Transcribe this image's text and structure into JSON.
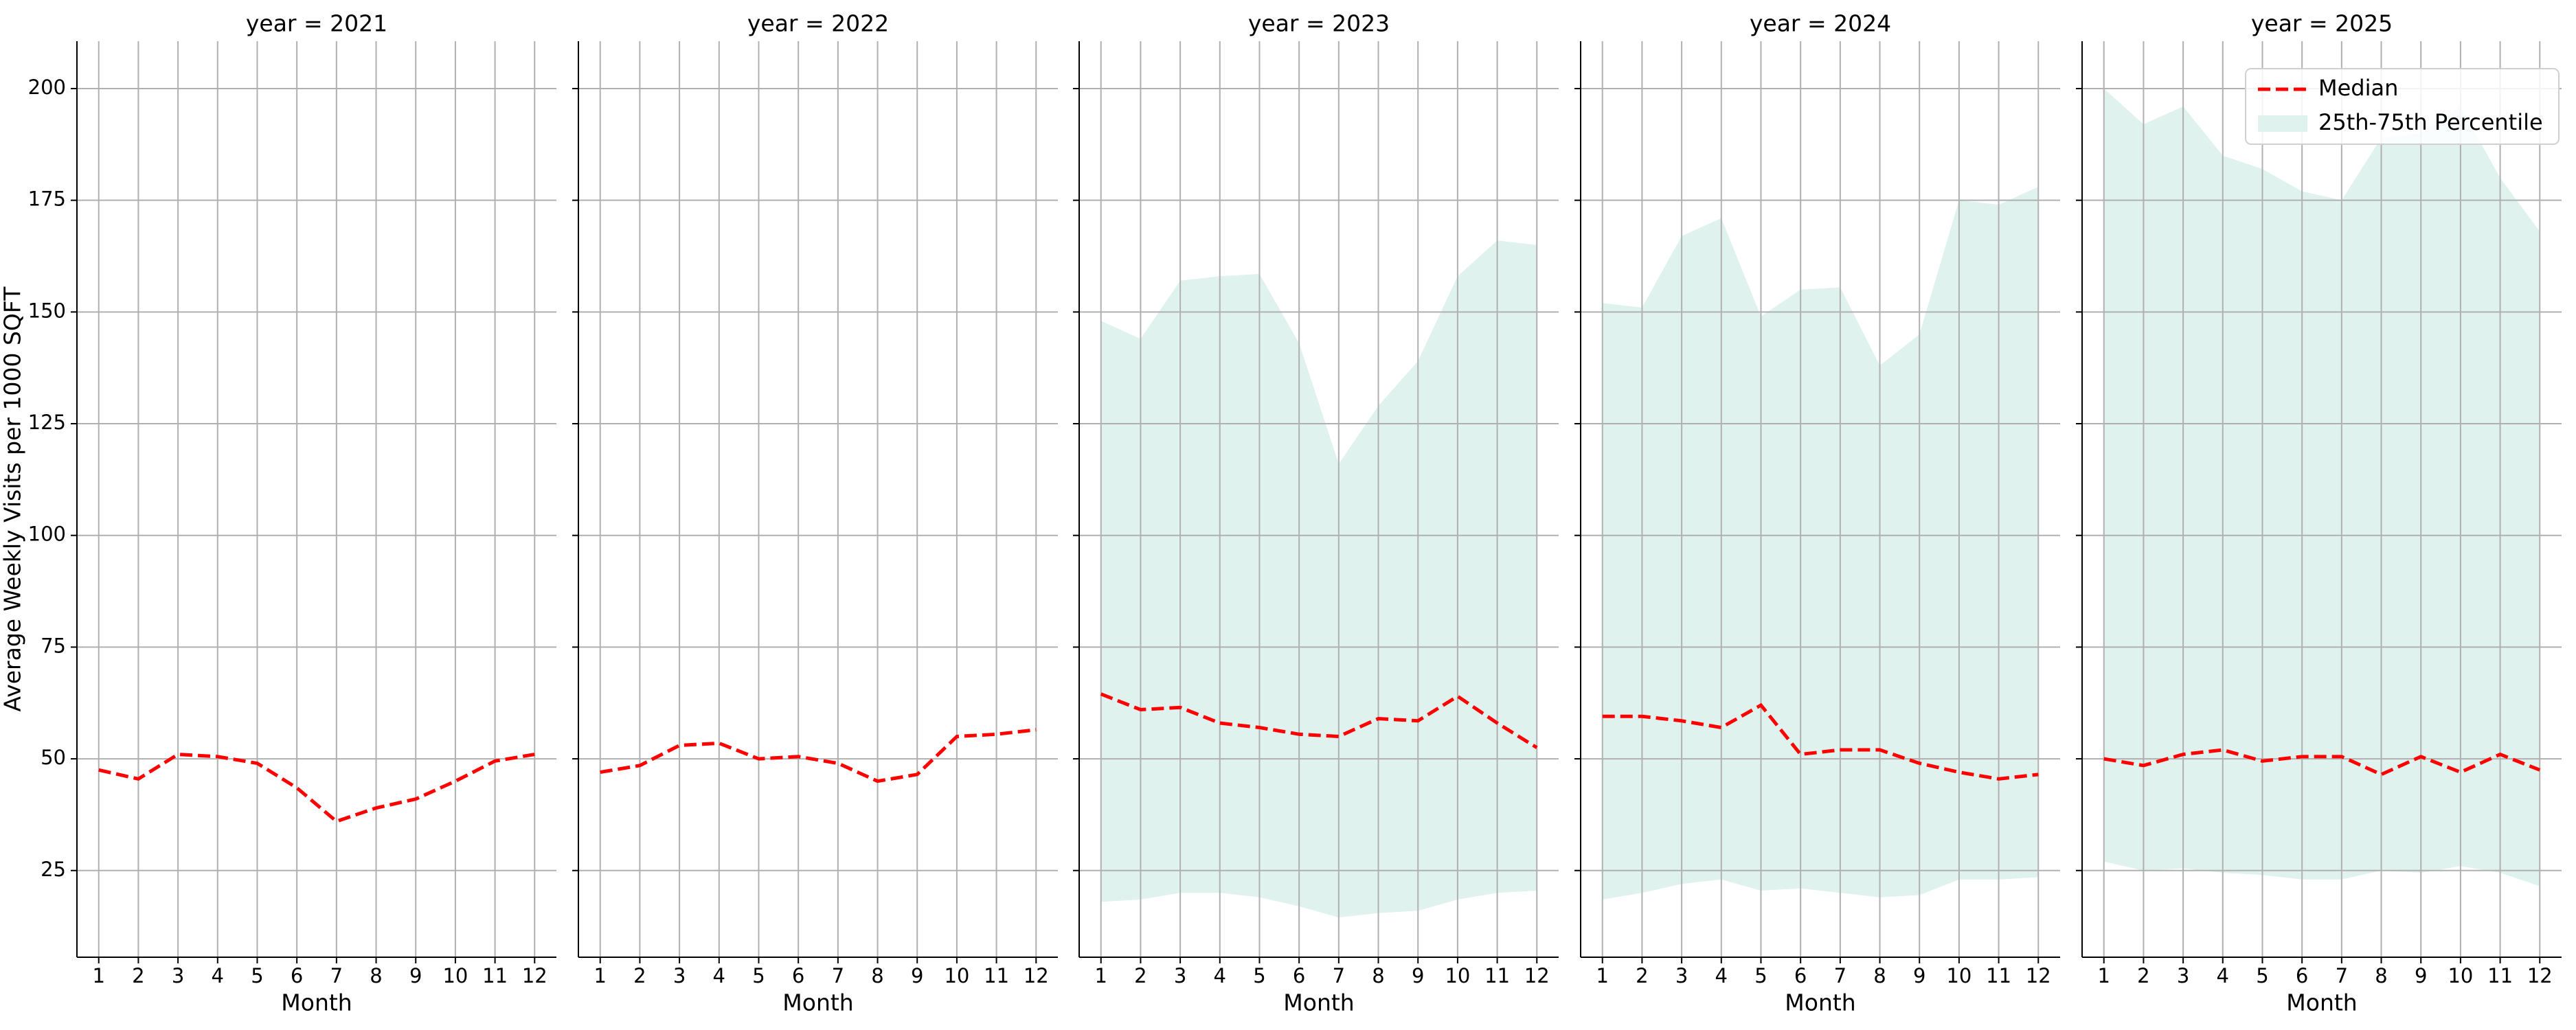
{
  "chart_data": [
    {
      "type": "line",
      "title": "year = 2021",
      "xlabel": "Month",
      "ylabel": "Average Weekly Visits per 1000 SQFT",
      "x": [
        1,
        2,
        3,
        4,
        5,
        6,
        7,
        8,
        9,
        10,
        11,
        12
      ],
      "xlim": [
        0.45,
        12.55
      ],
      "xticks": [
        1,
        2,
        3,
        4,
        5,
        6,
        7,
        8,
        9,
        10,
        11,
        12
      ],
      "ylim": [
        5.6,
        210.6
      ],
      "yticks": [
        25,
        50,
        75,
        100,
        125,
        150,
        175,
        200
      ],
      "grid": true,
      "series": [
        {
          "name": "Median",
          "color": "#ff0000",
          "values": [
            47.5,
            45.5,
            51,
            50.5,
            49,
            43.5,
            36,
            39,
            41,
            45,
            49.5,
            51
          ]
        }
      ]
    },
    {
      "type": "line",
      "title": "year = 2022",
      "xlabel": "Month",
      "x": [
        1,
        2,
        3,
        4,
        5,
        6,
        7,
        8,
        9,
        10,
        11,
        12
      ],
      "xlim": [
        0.45,
        12.55
      ],
      "xticks": [
        1,
        2,
        3,
        4,
        5,
        6,
        7,
        8,
        9,
        10,
        11,
        12
      ],
      "ylim": [
        5.6,
        210.6
      ],
      "yticks": [
        25,
        50,
        75,
        100,
        125,
        150,
        175,
        200
      ],
      "grid": true,
      "series": [
        {
          "name": "Median",
          "color": "#ff0000",
          "values": [
            47,
            48.5,
            53,
            53.5,
            50,
            50.5,
            49,
            45,
            46.5,
            55,
            55.5,
            56.5
          ]
        }
      ]
    },
    {
      "type": "line",
      "title": "year = 2023",
      "xlabel": "Month",
      "x": [
        1,
        2,
        3,
        4,
        5,
        6,
        7,
        8,
        9,
        10,
        11,
        12
      ],
      "xlim": [
        0.45,
        12.55
      ],
      "xticks": [
        1,
        2,
        3,
        4,
        5,
        6,
        7,
        8,
        9,
        10,
        11,
        12
      ],
      "ylim": [
        5.6,
        210.6
      ],
      "yticks": [
        25,
        50,
        75,
        100,
        125,
        150,
        175,
        200
      ],
      "grid": true,
      "series": [
        {
          "name": "25th-75th Percentile",
          "color": "#dff2ed",
          "upper": [
            148,
            144,
            157,
            158,
            158.5,
            143,
            116,
            129,
            139,
            158,
            166,
            165
          ],
          "lower": [
            18,
            18.5,
            20,
            20,
            19,
            17,
            14.5,
            15.5,
            16,
            18.5,
            20,
            20.5
          ]
        },
        {
          "name": "Median",
          "color": "#ff0000",
          "values": [
            64.5,
            61,
            61.5,
            58,
            57,
            55.5,
            55,
            59,
            58.5,
            64,
            58,
            52.5
          ]
        }
      ]
    },
    {
      "type": "line",
      "title": "year = 2024",
      "xlabel": "Month",
      "x": [
        1,
        2,
        3,
        4,
        5,
        6,
        7,
        8,
        9,
        10,
        11,
        12
      ],
      "xlim": [
        0.45,
        12.55
      ],
      "xticks": [
        1,
        2,
        3,
        4,
        5,
        6,
        7,
        8,
        9,
        10,
        11,
        12
      ],
      "ylim": [
        5.6,
        210.6
      ],
      "yticks": [
        25,
        50,
        75,
        100,
        125,
        150,
        175,
        200
      ],
      "grid": true,
      "series": [
        {
          "name": "25th-75th Percentile",
          "color": "#dff2ed",
          "upper": [
            152,
            151,
            167,
            171,
            149,
            155,
            155.5,
            138,
            145,
            175,
            174,
            178
          ],
          "lower": [
            18.5,
            20,
            22,
            23,
            20.5,
            21,
            20,
            19,
            19.5,
            23,
            23,
            23.5
          ]
        },
        {
          "name": "Median",
          "color": "#ff0000",
          "values": [
            59.5,
            59.5,
            58.5,
            57,
            62,
            51,
            52,
            52,
            49,
            47,
            45.5,
            46.5
          ]
        }
      ]
    },
    {
      "type": "line",
      "title": "year = 2025",
      "xlabel": "Month",
      "x": [
        1,
        2,
        3,
        4,
        5,
        6,
        7,
        8,
        9,
        10,
        11,
        12
      ],
      "xlim": [
        0.45,
        12.55
      ],
      "xticks": [
        1,
        2,
        3,
        4,
        5,
        6,
        7,
        8,
        9,
        10,
        11,
        12
      ],
      "ylim": [
        5.6,
        210.6
      ],
      "yticks": [
        25,
        50,
        75,
        100,
        125,
        150,
        175,
        200
      ],
      "grid": true,
      "legend": "upper right",
      "series": [
        {
          "name": "25th-75th Percentile",
          "color": "#dff2ed",
          "upper": [
            200,
            192,
            196,
            185,
            182,
            177,
            175,
            189,
            190,
            196,
            180,
            168
          ],
          "lower": [
            27,
            25,
            25.5,
            24.5,
            24,
            23,
            23,
            25,
            24.5,
            26,
            24.5,
            21.5
          ]
        },
        {
          "name": "Median",
          "color": "#ff0000",
          "values": [
            50,
            48.5,
            51,
            52,
            49.5,
            50.5,
            50.5,
            46.5,
            50.5,
            47,
            51,
            47.5
          ]
        }
      ]
    }
  ]
}
